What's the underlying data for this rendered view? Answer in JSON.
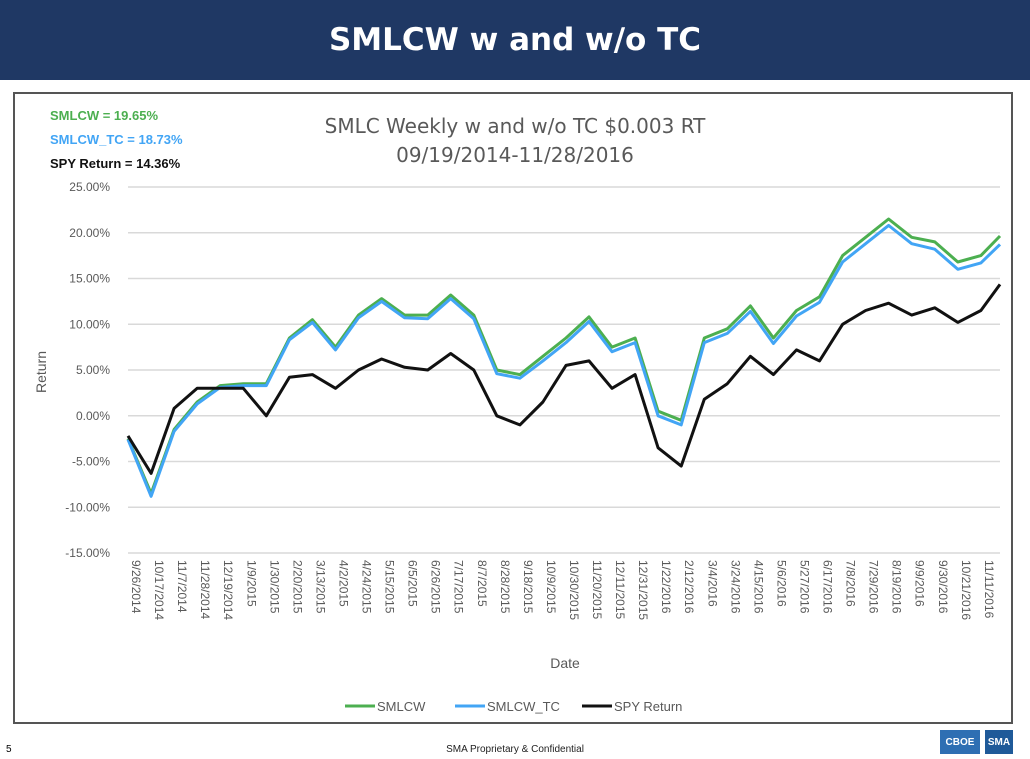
{
  "header": {
    "title": "SMLCW w and w/o TC"
  },
  "annotations": [
    {
      "text": "SMLCW = 19.65%",
      "color": "#4caf50"
    },
    {
      "text": "SMLCW_TC = 18.73%",
      "color": "#42a5f5"
    },
    {
      "text": "SPY Return = 14.36%",
      "color": "#111111"
    }
  ],
  "footer": {
    "text": "SMA Proprietary & Confidential",
    "page": "5",
    "logos": [
      "CBOE",
      "SMA"
    ]
  },
  "chart_data": {
    "type": "line",
    "title": "SMLC Weekly w and w/o TC $0.003 RT",
    "subtitle": "09/19/2014-11/28/2016",
    "xlabel": "Date",
    "ylabel": "Return",
    "ylim": [
      -15,
      25
    ],
    "ystep": 5,
    "yticks": [
      "-15.00%",
      "-10.00%",
      "-5.00%",
      "0.00%",
      "5.00%",
      "10.00%",
      "15.00%",
      "20.00%",
      "25.00%"
    ],
    "grid": true,
    "legend": "bottom",
    "x": [
      "9/26/2014",
      "10/17/2014",
      "11/7/2014",
      "11/28/2014",
      "12/19/2014",
      "1/9/2015",
      "1/30/2015",
      "2/20/2015",
      "3/13/2015",
      "4/2/2015",
      "4/24/2015",
      "5/15/2015",
      "6/5/2015",
      "6/26/2015",
      "7/17/2015",
      "8/7/2015",
      "8/28/2015",
      "9/18/2015",
      "10/9/2015",
      "10/30/2015",
      "11/20/2015",
      "12/11/2015",
      "12/31/2015",
      "1/22/2016",
      "2/12/2016",
      "3/4/2016",
      "3/24/2016",
      "4/15/2016",
      "5/6/2016",
      "5/27/2016",
      "6/17/2016",
      "7/8/2016",
      "7/29/2016",
      "8/19/2016",
      "9/9/2016",
      "9/30/2016",
      "10/21/2016",
      "11/11/2016",
      "11/28/2016"
    ],
    "xticks": [
      "9/26/2014",
      "10/17/2014",
      "11/7/2014",
      "11/28/2014",
      "12/19/2014",
      "1/9/2015",
      "1/30/2015",
      "2/20/2015",
      "3/13/2015",
      "4/2/2015",
      "4/24/2015",
      "5/15/2015",
      "6/5/2015",
      "6/26/2015",
      "7/17/2015",
      "8/7/2015",
      "8/28/2015",
      "9/18/2015",
      "10/9/2015",
      "10/30/2015",
      "11/20/2015",
      "12/11/2015",
      "12/31/2015",
      "1/22/2016",
      "2/12/2016",
      "3/4/2016",
      "3/24/2016",
      "4/15/2016",
      "5/6/2016",
      "5/27/2016",
      "6/17/2016",
      "7/8/2016",
      "7/29/2016",
      "8/19/2016",
      "9/9/2016",
      "9/30/2016",
      "10/21/2016",
      "11/11/2016"
    ],
    "series": [
      {
        "name": "SMLCW",
        "color": "#4caf50",
        "values": [
          -2.5,
          -8.5,
          -1.5,
          1.5,
          3.3,
          3.5,
          3.5,
          8.5,
          10.5,
          7.5,
          11.0,
          12.8,
          11.0,
          11.0,
          13.2,
          11.0,
          5.0,
          4.5,
          6.5,
          8.5,
          10.8,
          7.5,
          8.5,
          0.5,
          -0.5,
          8.5,
          9.5,
          12.0,
          8.5,
          11.5,
          13.0,
          17.5,
          19.5,
          21.5,
          19.5,
          19.0,
          16.8,
          17.5,
          19.65
        ]
      },
      {
        "name": "SMLCW_TC",
        "color": "#42a5f5",
        "values": [
          -2.6,
          -8.8,
          -1.7,
          1.3,
          3.1,
          3.3,
          3.3,
          8.3,
          10.2,
          7.2,
          10.7,
          12.5,
          10.7,
          10.6,
          12.8,
          10.6,
          4.6,
          4.1,
          6.0,
          8.0,
          10.3,
          7.0,
          8.0,
          0.0,
          -1.0,
          8.0,
          9.0,
          11.4,
          7.9,
          10.9,
          12.4,
          16.8,
          18.8,
          20.8,
          18.8,
          18.2,
          16.0,
          16.7,
          18.73
        ]
      },
      {
        "name": "SPY Return",
        "color": "#111111",
        "values": [
          -2.2,
          -6.3,
          0.8,
          3.0,
          3.0,
          3.0,
          0.0,
          4.2,
          4.5,
          3.0,
          5.0,
          6.2,
          5.3,
          5.0,
          6.8,
          5.0,
          0.0,
          -1.0,
          1.5,
          5.5,
          6.0,
          3.0,
          4.5,
          -3.5,
          -5.5,
          1.8,
          3.5,
          6.5,
          4.5,
          7.2,
          6.0,
          10.0,
          11.5,
          12.3,
          11.0,
          11.8,
          10.2,
          11.5,
          14.36
        ]
      }
    ]
  }
}
